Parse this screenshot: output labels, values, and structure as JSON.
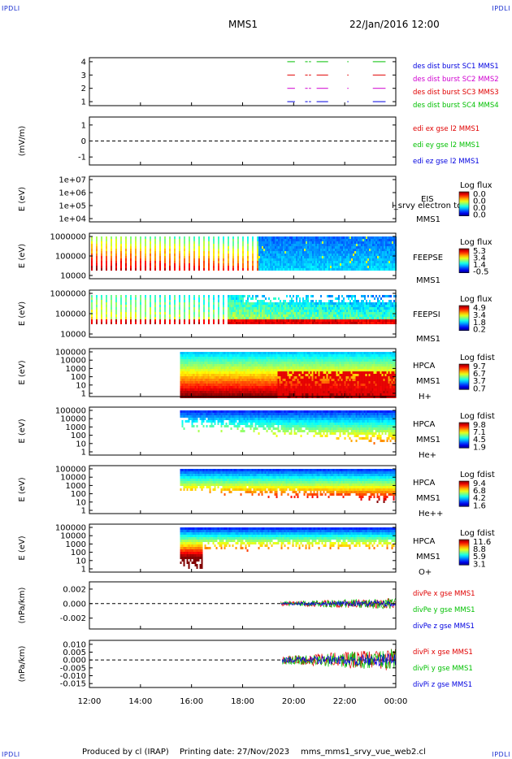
{
  "corners": {
    "tl": "IPDLI",
    "tr": "IPDLI",
    "bl": "IPDLI",
    "br": "IPDLI"
  },
  "header": {
    "spacecraft": "MMS1",
    "datetime": "22/Jan/2016 12:00"
  },
  "footer": {
    "produced": "Produced by cl (IRAP)",
    "printed": "Printing date: 27/Nov/2023",
    "script": "mms_mms1_srvy_vue_web2.cl"
  },
  "colors": {
    "red": "#e00000",
    "green": "#00c000",
    "blue": "#0000e0",
    "magenta": "#d000d0",
    "frame": "#000000"
  },
  "chart_data": [
    {
      "id": "p1",
      "type": "scatter",
      "ylabel": "",
      "yticks": [
        "1",
        "2",
        "3",
        "4"
      ],
      "ylim": [
        0.7,
        4.3
      ],
      "legend": [
        {
          "text": "des dist burst SC1 MMS1",
          "color": "#0000e0"
        },
        {
          "text": "des dist burst SC2 MMS2",
          "color": "#d000d0"
        },
        {
          "text": "des dist burst SC3 MMS3",
          "color": "#e00000"
        },
        {
          "text": "des dist burst SC4 MMS4",
          "color": "#00c000"
        }
      ],
      "intervals": [
        [
          19.75,
          20.05
        ],
        [
          20.45,
          20.55
        ],
        [
          20.6,
          20.68
        ],
        [
          20.9,
          21.35
        ],
        [
          22.1,
          22.15
        ],
        [
          23.1,
          23.6
        ]
      ]
    },
    {
      "id": "p2",
      "type": "line",
      "ylabel": "(mV/m)",
      "yticks": [
        "1",
        "0",
        "-1"
      ],
      "ylim": [
        -1.5,
        1.5
      ],
      "zero_line": true,
      "legend": [
        {
          "text": "edi ex gse l2 MMS1",
          "color": "#e00000"
        },
        {
          "text": "edi ey gse l2 MMS1",
          "color": "#00c000"
        },
        {
          "text": "edi ez gse l2 MMS1",
          "color": "#0000e0"
        }
      ]
    },
    {
      "id": "p3",
      "type": "heatmap",
      "ylabel": "E (eV)",
      "yticks": [
        "1e+07",
        "1e+06",
        "1e+05",
        "1e+04"
      ],
      "instrument": [
        "EIS",
        "MMS1"
      ],
      "overlay": "l_srvy electron to",
      "cbar_title": "Log flux",
      "cbar_ticks": [
        "0.0",
        "0.0",
        "0.0",
        "0.0"
      ]
    },
    {
      "id": "p4",
      "type": "heatmap",
      "ylabel": "E (eV)",
      "yticks": [
        "1000000",
        "100000",
        "10000"
      ],
      "instrument": [
        "FEEPSE",
        "MMS1"
      ],
      "cbar_title": "Log flux",
      "cbar_ticks": [
        "5.3",
        "3.4",
        "1.4",
        "-0.5"
      ]
    },
    {
      "id": "p5",
      "type": "heatmap",
      "ylabel": "E (eV)",
      "yticks": [
        "1000000",
        "100000",
        "10000"
      ],
      "instrument": [
        "FEEPSI",
        "MMS1"
      ],
      "cbar_title": "Log flux",
      "cbar_ticks": [
        "4.9",
        "3.4",
        "1.8",
        "0.2"
      ]
    },
    {
      "id": "p6",
      "type": "heatmap",
      "ylabel": "E (eV)",
      "yticks": [
        "100000",
        "10000",
        "1000",
        "100",
        "10",
        "1"
      ],
      "instrument": [
        "HPCA",
        "MMS1",
        "H+"
      ],
      "cbar_title": "Log fdist",
      "cbar_ticks": [
        "9.7",
        "6.7",
        "3.7",
        "0.7"
      ],
      "data_start_hour": 15.55
    },
    {
      "id": "p7",
      "type": "heatmap",
      "ylabel": "E (eV)",
      "yticks": [
        "100000",
        "10000",
        "1000",
        "100",
        "10",
        "1"
      ],
      "instrument": [
        "HPCA",
        "MMS1",
        "He+"
      ],
      "cbar_title": "Log fdist",
      "cbar_ticks": [
        "9.8",
        "7.1",
        "4.5",
        "1.9"
      ],
      "data_start_hour": 15.55
    },
    {
      "id": "p8",
      "type": "heatmap",
      "ylabel": "E (eV)",
      "yticks": [
        "100000",
        "10000",
        "1000",
        "100",
        "10",
        "1"
      ],
      "instrument": [
        "HPCA",
        "MMS1",
        "He++"
      ],
      "cbar_title": "Log fdist",
      "cbar_ticks": [
        "9.4",
        "6.8",
        "4.2",
        "1.6"
      ],
      "data_start_hour": 15.55
    },
    {
      "id": "p9",
      "type": "heatmap",
      "ylabel": "E (eV)",
      "yticks": [
        "100000",
        "10000",
        "1000",
        "100",
        "10",
        "1"
      ],
      "instrument": [
        "HPCA",
        "MMS1",
        "O+"
      ],
      "cbar_title": "Log fdist",
      "cbar_ticks": [
        "11.6",
        "8.8",
        "5.9",
        "3.1"
      ],
      "data_start_hour": 15.55
    },
    {
      "id": "p10",
      "type": "line",
      "ylabel": "(nPa/km)",
      "yticks": [
        "0.002",
        "0.000",
        "-0.002"
      ],
      "ylim": [
        -0.0035,
        0.003
      ],
      "zero_line": true,
      "data_start_hour": 19.5,
      "legend": [
        {
          "text": "divPe x gse MMS1",
          "color": "#e00000"
        },
        {
          "text": "divPe y gse MMS1",
          "color": "#00c000"
        },
        {
          "text": "divPe z gse MMS1",
          "color": "#0000e0"
        }
      ]
    },
    {
      "id": "p11",
      "type": "line",
      "ylabel": "(nPa/km)",
      "yticks": [
        "0.010",
        "0.005",
        "0.000",
        "-0.005",
        "-0.010",
        "-0.015"
      ],
      "ylim": [
        -0.0175,
        0.0125
      ],
      "zero_line": true,
      "data_start_hour": 19.55,
      "legend": [
        {
          "text": "divPi x gse MMS1",
          "color": "#e00000"
        },
        {
          "text": "divPi y gse MMS1",
          "color": "#00c000"
        },
        {
          "text": "divPi z gse MMS1",
          "color": "#0000e0"
        }
      ]
    }
  ],
  "xaxis": {
    "labels": [
      "12:00",
      "14:00",
      "16:00",
      "18:00",
      "20:00",
      "22:00",
      "00:00"
    ],
    "range_hours": [
      12,
      24
    ]
  }
}
